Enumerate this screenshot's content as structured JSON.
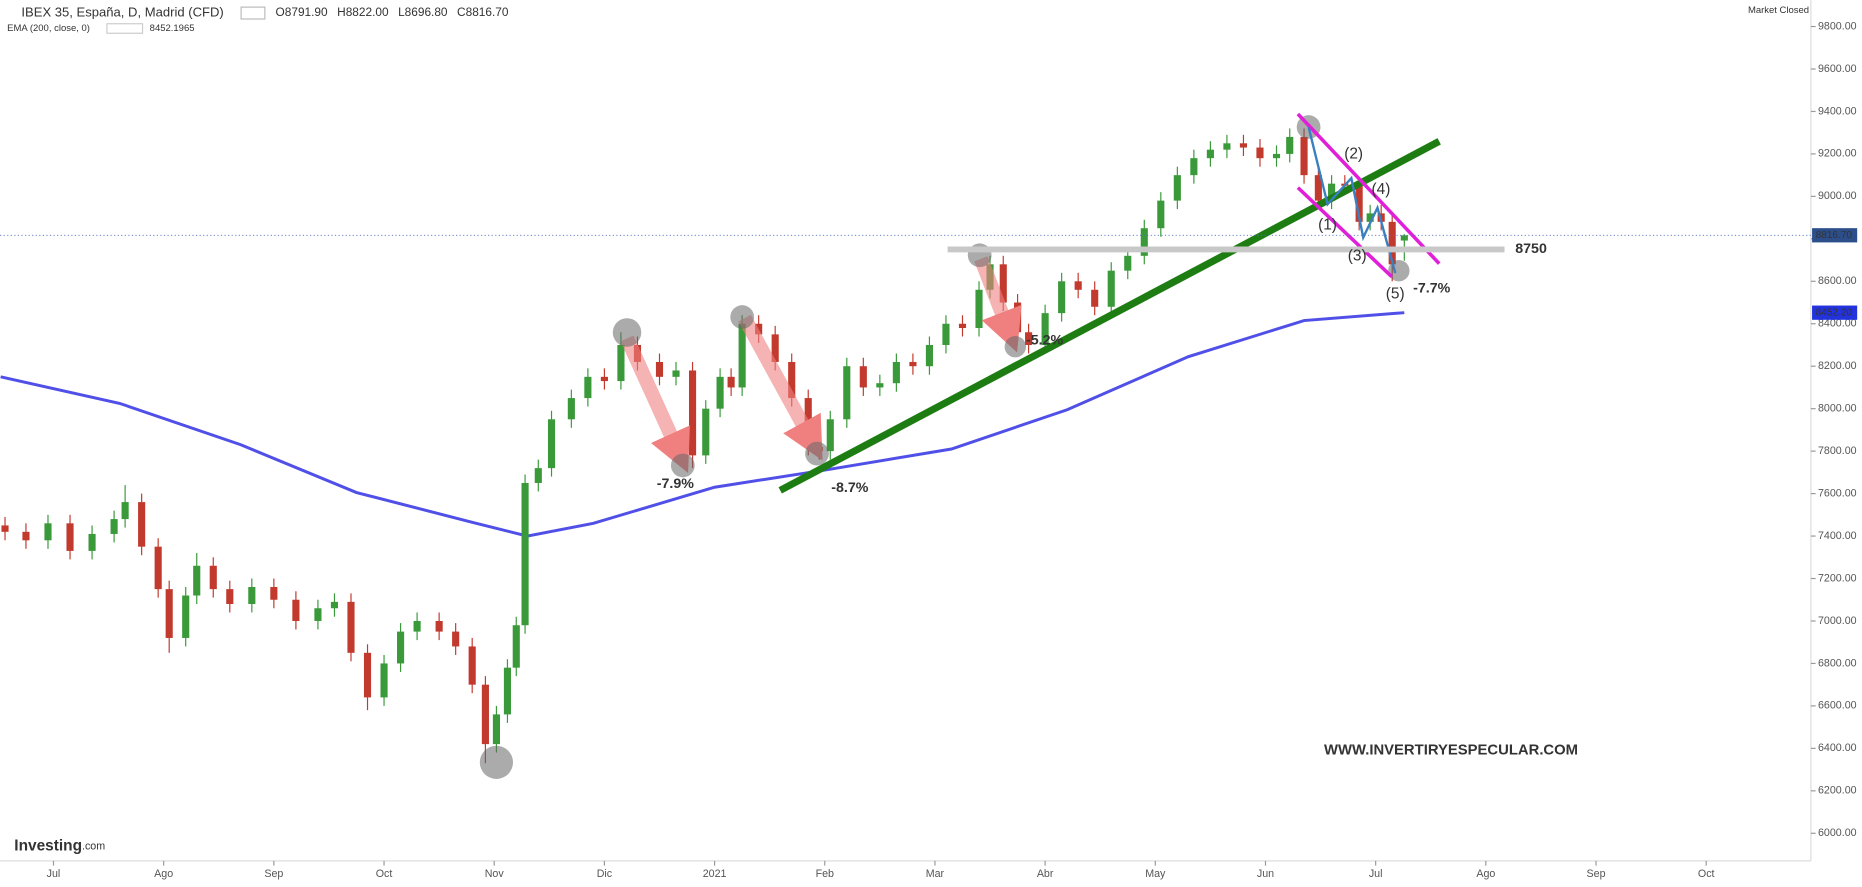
{
  "chart_data": {
    "type": "candlestick",
    "title": "IBEX 35, España, D, Madrid (CFD)",
    "header_values": [
      "O8791.90",
      "H8822.00",
      "L8696.80",
      "C8816.70"
    ],
    "status": "Market Closed",
    "up_color": "#3a9a3a",
    "down_color": "#c23a2e",
    "x": [
      -0.44,
      -0.25,
      -0.05,
      0.15,
      0.35,
      0.55,
      0.65,
      0.8,
      0.95,
      1.05,
      1.2,
      1.3,
      1.45,
      1.6,
      1.8,
      2.0,
      2.2,
      2.4,
      2.55,
      2.7,
      2.85,
      3.0,
      3.15,
      3.3,
      3.5,
      3.65,
      3.8,
      3.92,
      4.02,
      4.12,
      4.2,
      4.28,
      4.4,
      4.52,
      4.7,
      4.85,
      5.0,
      5.15,
      5.3,
      5.5,
      5.65,
      5.8,
      5.92,
      6.05,
      6.15,
      6.25,
      6.4,
      6.55,
      6.7,
      6.85,
      6.95,
      7.05,
      7.2,
      7.35,
      7.5,
      7.65,
      7.8,
      7.95,
      8.1,
      8.25,
      8.4,
      8.5,
      8.62,
      8.75,
      8.85,
      9.0,
      9.15,
      9.3,
      9.45,
      9.6,
      9.75,
      9.9,
      10.05,
      10.2,
      10.35,
      10.5,
      10.65,
      10.8,
      10.95,
      11.1,
      11.22,
      11.35,
      11.48,
      11.6,
      11.72,
      11.85,
      11.95,
      12.05,
      12.15,
      12.26
    ],
    "open": [
      7450,
      7420,
      7380,
      7460,
      7330,
      7410,
      7480,
      7560,
      7350,
      7150,
      6920,
      7120,
      7260,
      7150,
      7080,
      7160,
      7100,
      7000,
      7060,
      7090,
      6850,
      6640,
      6800,
      6950,
      7000,
      6950,
      6880,
      6700,
      6420,
      6560,
      6780,
      6980,
      7650,
      7720,
      7950,
      8050,
      8150,
      8130,
      8300,
      8220,
      8150,
      8180,
      7780,
      8000,
      8150,
      8100,
      8400,
      8350,
      8220,
      8050,
      7820,
      7800,
      7950,
      8200,
      8100,
      8120,
      8220,
      8200,
      8300,
      8400,
      8380,
      8560,
      8680,
      8500,
      8360,
      8300,
      8450,
      8600,
      8560,
      8480,
      8650,
      8720,
      8850,
      8980,
      9100,
      9180,
      9220,
      9250,
      9230,
      9180,
      9200,
      9280,
      9100,
      8980,
      9060,
      9050,
      8880,
      8920,
      8880,
      8791.9
    ],
    "high": [
      7490,
      7460,
      7500,
      7500,
      7450,
      7520,
      7640,
      7600,
      7390,
      7190,
      7160,
      7320,
      7300,
      7190,
      7200,
      7200,
      7140,
      7100,
      7130,
      7130,
      6890,
      6840,
      6990,
      7040,
      7040,
      6990,
      6920,
      6740,
      6600,
      6820,
      7020,
      7690,
      7760,
      7990,
      8090,
      8190,
      8190,
      8360,
      8340,
      8260,
      8220,
      8220,
      8040,
      8190,
      8190,
      8440,
      8440,
      8390,
      8260,
      8090,
      7860,
      7990,
      8240,
      8240,
      8160,
      8260,
      8260,
      8340,
      8440,
      8440,
      8600,
      8720,
      8720,
      8540,
      8400,
      8490,
      8640,
      8640,
      8600,
      8690,
      8760,
      8890,
      9020,
      9140,
      9220,
      9260,
      9290,
      9290,
      9270,
      9240,
      9320,
      9320,
      9140,
      9100,
      9100,
      9090,
      8960,
      8960,
      8920,
      8822
    ],
    "low": [
      7380,
      7340,
      7340,
      7290,
      7290,
      7370,
      7440,
      7310,
      7110,
      6850,
      6880,
      7080,
      7110,
      7040,
      7040,
      7060,
      6960,
      6960,
      7020,
      6810,
      6580,
      6600,
      6760,
      6910,
      6910,
      6840,
      6660,
      6330,
      6380,
      6520,
      6740,
      6940,
      7610,
      7680,
      7910,
      8010,
      8090,
      8090,
      8180,
      8110,
      8110,
      7720,
      7740,
      7960,
      8060,
      8060,
      8310,
      8180,
      8010,
      7780,
      7760,
      7760,
      7910,
      8060,
      8060,
      8080,
      8160,
      8160,
      8260,
      8340,
      8340,
      8520,
      8460,
      8320,
      8260,
      8260,
      8410,
      8520,
      8440,
      8440,
      8610,
      8680,
      8810,
      8940,
      9060,
      9140,
      9180,
      9190,
      9140,
      9140,
      9160,
      9060,
      8940,
      8940,
      9010,
      8840,
      8840,
      8840,
      8600,
      8696.8
    ],
    "close": [
      7420,
      7380,
      7460,
      7330,
      7410,
      7480,
      7560,
      7350,
      7150,
      6920,
      7120,
      7260,
      7150,
      7080,
      7160,
      7100,
      7000,
      7060,
      7090,
      6850,
      6640,
      6800,
      6950,
      7000,
      6950,
      6880,
      6700,
      6420,
      6560,
      6780,
      6980,
      7650,
      7720,
      7950,
      8050,
      8150,
      8130,
      8300,
      8220,
      8150,
      8180,
      7780,
      8000,
      8150,
      8100,
      8400,
      8350,
      8220,
      8050,
      7820,
      7800,
      7950,
      8200,
      8100,
      8120,
      8220,
      8200,
      8300,
      8400,
      8380,
      8560,
      8680,
      8500,
      8360,
      8300,
      8450,
      8600,
      8560,
      8480,
      8650,
      8720,
      8850,
      8980,
      9100,
      9180,
      9220,
      9250,
      9230,
      9180,
      9200,
      9280,
      9100,
      8980,
      9060,
      9050,
      8880,
      8920,
      8880,
      8680,
      8816.7
    ],
    "last_price_label": "8816.70",
    "series": [
      {
        "name": "EMA (200, close, 0)",
        "color": "#5050e8",
        "value_label": "8452.1965",
        "price_label": "8452.20",
        "x": [
          -0.48,
          0.6,
          1.7,
          2.75,
          3.8,
          4.3,
          4.9,
          6.0,
          7.05,
          8.15,
          9.2,
          10.3,
          11.35,
          12.26
        ],
        "values": [
          8150,
          8025,
          7830,
          7605,
          7465,
          7400,
          7460,
          7630,
          7715,
          7810,
          7995,
          8245,
          8415,
          8452.2
        ]
      }
    ],
    "xlim": [
      -0.485,
      15.95
    ],
    "xticks": [
      {
        "value": 0,
        "label": "Jul"
      },
      {
        "value": 1,
        "label": "Ago"
      },
      {
        "value": 2,
        "label": "Sep"
      },
      {
        "value": 3,
        "label": "Oct"
      },
      {
        "value": 4,
        "label": "Nov"
      },
      {
        "value": 5,
        "label": "Dic"
      },
      {
        "value": 6,
        "label": "2021"
      },
      {
        "value": 7,
        "label": "Feb"
      },
      {
        "value": 8,
        "label": "Mar"
      },
      {
        "value": 9,
        "label": "Abr"
      },
      {
        "value": 10,
        "label": "May"
      },
      {
        "value": 11,
        "label": "Jun"
      },
      {
        "value": 12,
        "label": "Jul"
      },
      {
        "value": 13,
        "label": "Ago"
      },
      {
        "value": 14,
        "label": "Sep"
      },
      {
        "value": 15,
        "label": "Oct"
      }
    ],
    "ylim": [
      5870,
      9925
    ],
    "yticks": [
      {
        "value": 6000,
        "label": "6000.00"
      },
      {
        "value": 6200,
        "label": "6200.00"
      },
      {
        "value": 6400,
        "label": "6400.00"
      },
      {
        "value": 6600,
        "label": "6600.00"
      },
      {
        "value": 6800,
        "label": "6800.00"
      },
      {
        "value": 7000,
        "label": "7000.00"
      },
      {
        "value": 7200,
        "label": "7200.00"
      },
      {
        "value": 7400,
        "label": "7400.00"
      },
      {
        "value": 7600,
        "label": "7600.00"
      },
      {
        "value": 7800,
        "label": "7800.00"
      },
      {
        "value": 8000,
        "label": "8000.00"
      },
      {
        "value": 8200,
        "label": "8200.00"
      },
      {
        "value": 8400,
        "label": "8400.00"
      },
      {
        "value": 8600,
        "label": "8600.00"
      },
      {
        "value": 8800,
        "label": "8800.00"
      },
      {
        "value": 9000,
        "label": "9000.00"
      },
      {
        "value": 9200,
        "label": "9200.00"
      },
      {
        "value": 9400,
        "label": "9400.00"
      },
      {
        "value": 9600,
        "label": "9600.00"
      },
      {
        "value": 9800,
        "label": "9800.00"
      }
    ],
    "grid": false,
    "level": 8750,
    "annotations": [
      "-7.9%",
      "-8.7%",
      "-5.2%",
      "-7.7%",
      "(1)",
      "(2)",
      "(3)",
      "(4)",
      "(5)"
    ],
    "watermark": "WWW.INVERTIRYESPECULAR.COM",
    "logo": [
      "Investing",
      ".com"
    ]
  }
}
